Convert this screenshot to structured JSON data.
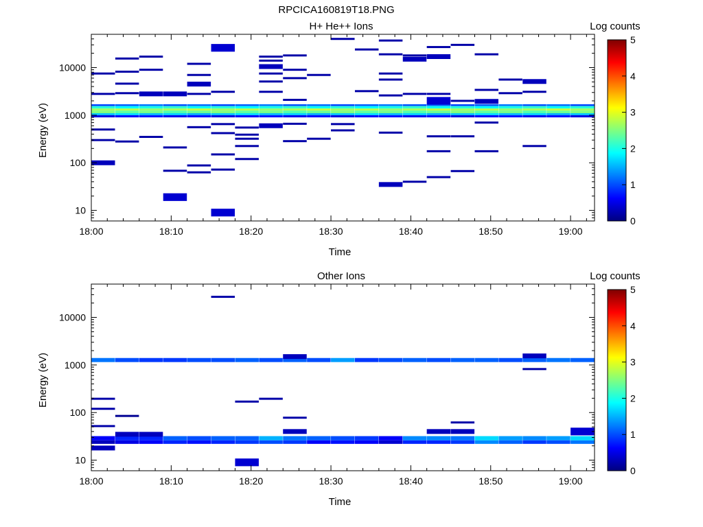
{
  "figure_title": "RPCICA160819T18.PNG",
  "chart_data": [
    {
      "type": "heatmap",
      "title": "H+ He++ Ions",
      "xlabel": "Time",
      "ylabel": "Energy (eV)",
      "colorbar_label": "Log counts",
      "y_scale": "log",
      "xlim": [
        "18:00",
        "19:03"
      ],
      "ylim": [
        6,
        50000
      ],
      "x_ticks": [
        "18:00",
        "18:10",
        "18:20",
        "18:30",
        "18:40",
        "18:50",
        "19:00"
      ],
      "y_ticks": [
        "10",
        "100",
        "1000",
        "10000"
      ],
      "colorbar_range": [
        0,
        5
      ],
      "colorbar_ticks": [
        "0",
        "1",
        "2",
        "3",
        "4",
        "5"
      ],
      "columns": [
        "18:00",
        "18:03",
        "18:06",
        "18:09",
        "18:12",
        "18:15",
        "18:18",
        "18:21",
        "18:24",
        "18:27",
        "18:30",
        "18:33",
        "18:36",
        "18:39",
        "18:42",
        "18:45",
        "18:48",
        "18:51",
        "18:54",
        "18:57",
        "19:00"
      ],
      "band": {
        "e_min": 900,
        "e_max": 1700
      },
      "cells": [
        {
          "t": "18:00",
          "e": 7500,
          "v": 0.2
        },
        {
          "t": "18:00",
          "e": 2800,
          "v": 0.2
        },
        {
          "t": "18:00",
          "e": 500,
          "v": 0.2
        },
        {
          "t": "18:00",
          "e": 300,
          "v": 0.2
        },
        {
          "t": "18:00",
          "e": 100,
          "v": 0.3
        },
        {
          "t": "18:03",
          "e": 15500,
          "v": 0.2
        },
        {
          "t": "18:03",
          "e": 8200,
          "v": 0.2
        },
        {
          "t": "18:03",
          "e": 4600,
          "v": 0.2
        },
        {
          "t": "18:03",
          "e": 2900,
          "v": 0.2
        },
        {
          "t": "18:03",
          "e": 280,
          "v": 0.2
        },
        {
          "t": "18:06",
          "e": 17000,
          "v": 0.2
        },
        {
          "t": "18:06",
          "e": 9000,
          "v": 0.2
        },
        {
          "t": "18:06",
          "e": 2800,
          "v": 0.3
        },
        {
          "t": "18:06",
          "e": 350,
          "v": 0.2
        },
        {
          "t": "18:09",
          "e": 2800,
          "v": 0.3
        },
        {
          "t": "18:09",
          "e": 210,
          "v": 0.2
        },
        {
          "t": "18:09",
          "e": 68,
          "v": 0.2
        },
        {
          "t": "18:09",
          "e": 19,
          "v": 0.4
        },
        {
          "t": "18:12",
          "e": 12000,
          "v": 0.2
        },
        {
          "t": "18:12",
          "e": 7000,
          "v": 0.2
        },
        {
          "t": "18:12",
          "e": 4500,
          "v": 0.3
        },
        {
          "t": "18:12",
          "e": 2800,
          "v": 0.2
        },
        {
          "t": "18:12",
          "e": 560,
          "v": 0.2
        },
        {
          "t": "18:12",
          "e": 88,
          "v": 0.2
        },
        {
          "t": "18:12",
          "e": 63,
          "v": 0.2
        },
        {
          "t": "18:15",
          "e": 26000,
          "v": 0.4
        },
        {
          "t": "18:15",
          "e": 3100,
          "v": 0.2
        },
        {
          "t": "18:15",
          "e": 650,
          "v": 0.2
        },
        {
          "t": "18:15",
          "e": 420,
          "v": 0.2
        },
        {
          "t": "18:15",
          "e": 150,
          "v": 0.2
        },
        {
          "t": "18:15",
          "e": 72,
          "v": 0.2
        },
        {
          "t": "18:15",
          "e": 9,
          "v": 0.4
        },
        {
          "t": "18:18",
          "e": 550,
          "v": 0.2
        },
        {
          "t": "18:18",
          "e": 390,
          "v": 0.2
        },
        {
          "t": "18:18",
          "e": 320,
          "v": 0.2
        },
        {
          "t": "18:18",
          "e": 225,
          "v": 0.2
        },
        {
          "t": "18:18",
          "e": 120,
          "v": 0.2
        },
        {
          "t": "18:21",
          "e": 17000,
          "v": 0.2
        },
        {
          "t": "18:21",
          "e": 14000,
          "v": 0.2
        },
        {
          "t": "18:21",
          "e": 10500,
          "v": 0.3
        },
        {
          "t": "18:21",
          "e": 7500,
          "v": 0.2
        },
        {
          "t": "18:21",
          "e": 5100,
          "v": 0.2
        },
        {
          "t": "18:21",
          "e": 3100,
          "v": 0.2
        },
        {
          "t": "18:21",
          "e": 600,
          "v": 0.3
        },
        {
          "t": "18:24",
          "e": 18000,
          "v": 0.2
        },
        {
          "t": "18:24",
          "e": 9000,
          "v": 0.2
        },
        {
          "t": "18:24",
          "e": 6000,
          "v": 0.2
        },
        {
          "t": "18:24",
          "e": 2100,
          "v": 0.2
        },
        {
          "t": "18:24",
          "e": 660,
          "v": 0.2
        },
        {
          "t": "18:24",
          "e": 285,
          "v": 0.2
        },
        {
          "t": "18:27",
          "e": 7000,
          "v": 0.2
        },
        {
          "t": "18:27",
          "e": 320,
          "v": 0.2
        },
        {
          "t": "18:30",
          "e": 40000,
          "v": 0.2
        },
        {
          "t": "18:30",
          "e": 650,
          "v": 0.2
        },
        {
          "t": "18:30",
          "e": 480,
          "v": 0.2
        },
        {
          "t": "18:33",
          "e": 24000,
          "v": 0.2
        },
        {
          "t": "18:33",
          "e": 3200,
          "v": 0.2
        },
        {
          "t": "18:36",
          "e": 37000,
          "v": 0.2
        },
        {
          "t": "18:36",
          "e": 19000,
          "v": 0.2
        },
        {
          "t": "18:36",
          "e": 7500,
          "v": 0.2
        },
        {
          "t": "18:36",
          "e": 5600,
          "v": 0.2
        },
        {
          "t": "18:36",
          "e": 2600,
          "v": 0.2
        },
        {
          "t": "18:36",
          "e": 430,
          "v": 0.2
        },
        {
          "t": "18:36",
          "e": 35,
          "v": 0.3
        },
        {
          "t": "18:39",
          "e": 18000,
          "v": 0.2
        },
        {
          "t": "18:39",
          "e": 15000,
          "v": 0.3
        },
        {
          "t": "18:39",
          "e": 2800,
          "v": 0.2
        },
        {
          "t": "18:39",
          "e": 40,
          "v": 0.2
        },
        {
          "t": "18:42",
          "e": 27000,
          "v": 0.2
        },
        {
          "t": "18:42",
          "e": 17000,
          "v": 0.3
        },
        {
          "t": "18:42",
          "e": 2800,
          "v": 0.2
        },
        {
          "t": "18:42",
          "e": 2000,
          "v": 0.4
        },
        {
          "t": "18:42",
          "e": 360,
          "v": 0.2
        },
        {
          "t": "18:42",
          "e": 175,
          "v": 0.2
        },
        {
          "t": "18:42",
          "e": 50,
          "v": 0.2
        },
        {
          "t": "18:45",
          "e": 30000,
          "v": 0.2
        },
        {
          "t": "18:45",
          "e": 2000,
          "v": 0.2
        },
        {
          "t": "18:45",
          "e": 360,
          "v": 0.2
        },
        {
          "t": "18:45",
          "e": 67,
          "v": 0.2
        },
        {
          "t": "18:48",
          "e": 19000,
          "v": 0.2
        },
        {
          "t": "18:48",
          "e": 3400,
          "v": 0.2
        },
        {
          "t": "18:48",
          "e": 1950,
          "v": 0.3
        },
        {
          "t": "18:48",
          "e": 700,
          "v": 0.2
        },
        {
          "t": "18:48",
          "e": 175,
          "v": 0.2
        },
        {
          "t": "18:51",
          "e": 5600,
          "v": 0.2
        },
        {
          "t": "18:51",
          "e": 2900,
          "v": 0.2
        },
        {
          "t": "18:54",
          "e": 5100,
          "v": 0.3
        },
        {
          "t": "18:54",
          "e": 3100,
          "v": 0.2
        },
        {
          "t": "18:54",
          "e": 225,
          "v": 0.2
        }
      ]
    },
    {
      "type": "heatmap",
      "title": "Other Ions",
      "xlabel": "Time",
      "ylabel": "Energy (eV)",
      "colorbar_label": "Log counts",
      "y_scale": "log",
      "xlim": [
        "18:00",
        "19:03"
      ],
      "ylim": [
        6,
        50000
      ],
      "x_ticks": [
        "18:00",
        "18:10",
        "18:20",
        "18:30",
        "18:40",
        "18:50",
        "19:00"
      ],
      "y_ticks": [
        "10",
        "100",
        "1000",
        "10000"
      ],
      "colorbar_range": [
        0,
        5
      ],
      "colorbar_ticks": [
        "0",
        "1",
        "2",
        "3",
        "4",
        "5"
      ],
      "columns": [
        "18:00",
        "18:03",
        "18:06",
        "18:09",
        "18:12",
        "18:15",
        "18:18",
        "18:21",
        "18:24",
        "18:27",
        "18:30",
        "18:33",
        "18:36",
        "18:39",
        "18:42",
        "18:45",
        "18:48",
        "18:51",
        "18:54",
        "18:57",
        "19:00"
      ],
      "high_band": {
        "e_min": 1150,
        "e_max": 1400,
        "values": [
          1.2,
          1.0,
          0.9,
          0.9,
          1.0,
          1.0,
          1.1,
          1.0,
          1.1,
          1.0,
          1.4,
          0.9,
          1.0,
          1.1,
          1.0,
          1.1,
          1.1,
          1.0,
          1.1,
          1.2,
          1.1
        ]
      },
      "low_band": {
        "upper": [
          0.6,
          0.8,
          0.8,
          1.1,
          1.0,
          1.1,
          1.1,
          1.5,
          1.2,
          1.1,
          1.0,
          0.9,
          0.6,
          1.3,
          1.3,
          1.2,
          1.7,
          1.4,
          1.3,
          1.4,
          1.7
        ],
        "lower": [
          0.3,
          0.5,
          0.6,
          0.8,
          0.7,
          0.8,
          0.9,
          1.0,
          0.9,
          0.6,
          0.7,
          0.6,
          0.4,
          0.8,
          0.8,
          0.9,
          1.3,
          1.1,
          0.9,
          1.0,
          1.2
        ]
      },
      "cells": [
        {
          "t": "18:00",
          "e": 195,
          "v": 0.2
        },
        {
          "t": "18:00",
          "e": 120,
          "v": 0.2
        },
        {
          "t": "18:00",
          "e": 52,
          "v": 0.2
        },
        {
          "t": "18:00",
          "e": 18,
          "v": 0.3
        },
        {
          "t": "18:03",
          "e": 85,
          "v": 0.1
        },
        {
          "t": "18:03",
          "e": 35,
          "v": 0.3
        },
        {
          "t": "18:06",
          "e": 35,
          "v": 0.3
        },
        {
          "t": "18:15",
          "e": 27000,
          "v": 0.2
        },
        {
          "t": "18:18",
          "e": 170,
          "v": 0.2
        },
        {
          "t": "18:18",
          "e": 9,
          "v": 0.4
        },
        {
          "t": "18:21",
          "e": 195,
          "v": 0.2
        },
        {
          "t": "18:24",
          "e": 1500,
          "v": 0.3
        },
        {
          "t": "18:24",
          "e": 78,
          "v": 0.2
        },
        {
          "t": "18:24",
          "e": 40,
          "v": 0.3
        },
        {
          "t": "18:42",
          "e": 40,
          "v": 0.3
        },
        {
          "t": "18:45",
          "e": 62,
          "v": 0.2
        },
        {
          "t": "18:45",
          "e": 40,
          "v": 0.3
        },
        {
          "t": "18:54",
          "e": 1550,
          "v": 0.3
        },
        {
          "t": "18:54",
          "e": 820,
          "v": 0.2
        },
        {
          "t": "19:00",
          "e": 40,
          "v": 0.4
        }
      ]
    }
  ]
}
